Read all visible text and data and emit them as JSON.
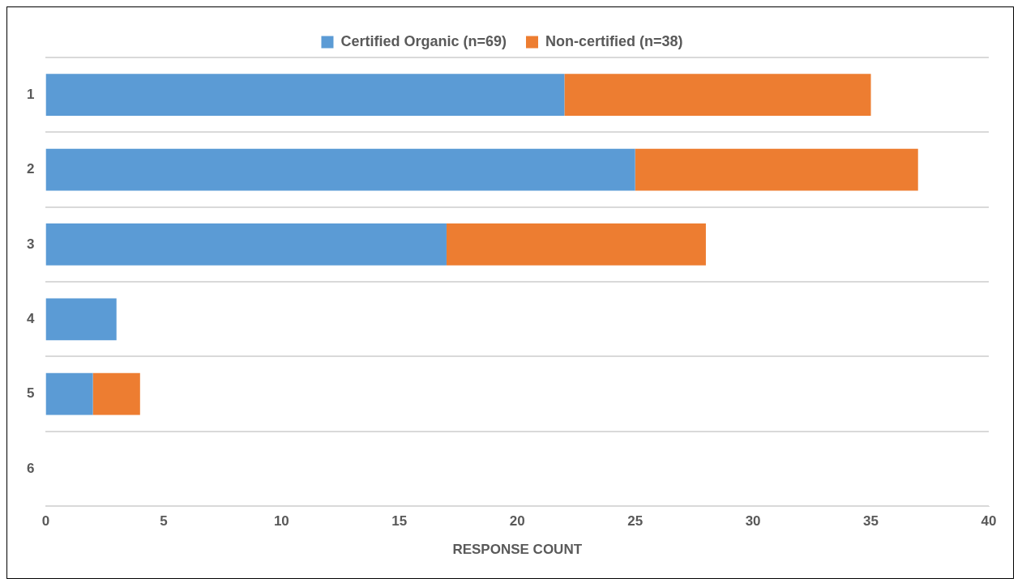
{
  "chart_data": {
    "type": "bar",
    "orientation": "horizontal",
    "stacked": true,
    "xlabel": "RESPONSE COUNT",
    "categories": [
      "1",
      "2",
      "3",
      "4",
      "5",
      "6"
    ],
    "series": [
      {
        "name": "Certified Organic (n=69)",
        "color": "#5b9bd5",
        "values": [
          22,
          25,
          17,
          3,
          2,
          0
        ]
      },
      {
        "name": "Non-certified (n=38)",
        "color": "#ed7d31",
        "values": [
          13,
          12,
          11,
          0,
          2,
          0
        ]
      }
    ],
    "xlim": [
      0,
      40
    ],
    "xticks": [
      0,
      5,
      10,
      15,
      20,
      25,
      30,
      35,
      40
    ],
    "grid": "y",
    "legend": "top"
  }
}
